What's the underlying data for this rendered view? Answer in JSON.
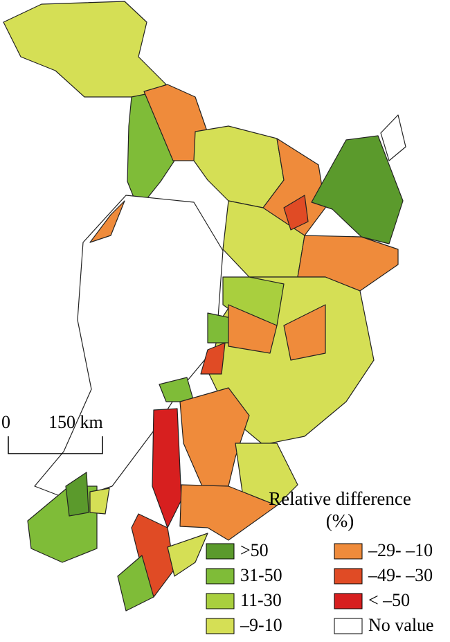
{
  "legend": {
    "title": "Relative difference (%)",
    "items": [
      {
        "label": ">50",
        "color": "#5b9a2c"
      },
      {
        "label": "31-50",
        "color": "#7fbc38"
      },
      {
        "label": "11-30",
        "color": "#a9cf3e"
      },
      {
        "label": "–9-10",
        "color": "#d5df55"
      },
      {
        "label": "–29- –10",
        "color": "#ef8b3b"
      },
      {
        "label": "–49- –30",
        "color": "#e04b25"
      },
      {
        "label": "< –50",
        "color": "#d71f1f"
      },
      {
        "label": "No value",
        "color": "#ffffff"
      }
    ]
  },
  "scale_bar": {
    "start": "0",
    "end": "150 km"
  }
}
